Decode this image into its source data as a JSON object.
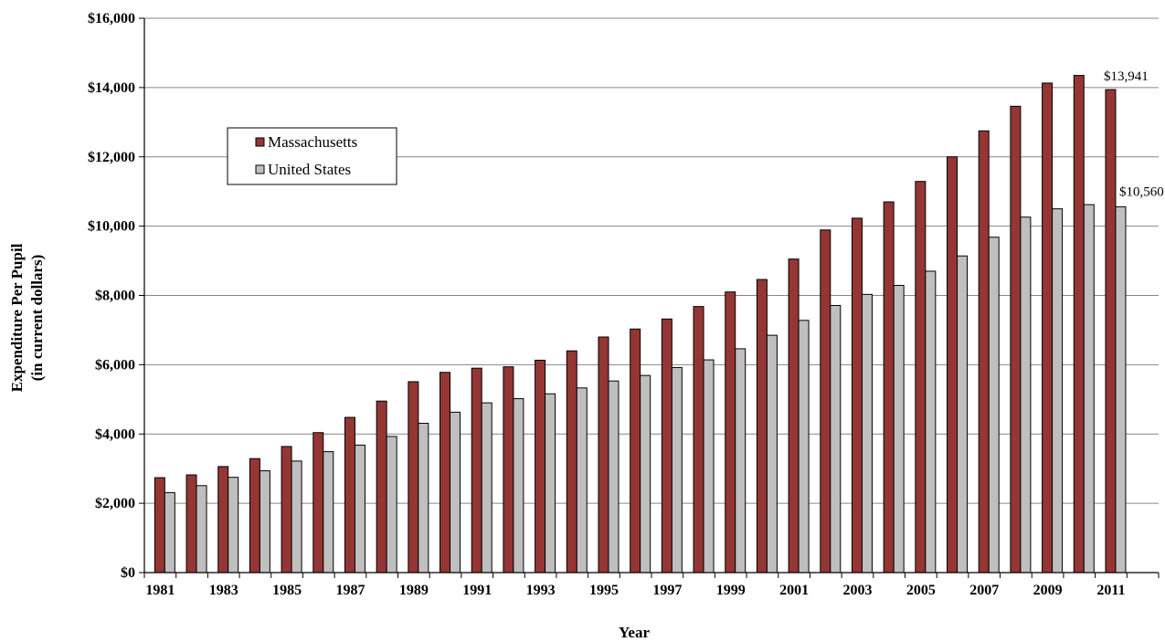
{
  "chart_data": {
    "type": "bar",
    "ylabel_line1": "Expenditure Per Pupil",
    "ylabel_line2": "(in current dollars)",
    "xlabel": "Year",
    "ylim": [
      0,
      16000
    ],
    "y_ticks": [
      "$0",
      "$2,000",
      "$4,000",
      "$6,000",
      "$8,000",
      "$10,000",
      "$12,000",
      "$14,000",
      "$16,000"
    ],
    "y_tick_values": [
      0,
      2000,
      4000,
      6000,
      8000,
      10000,
      12000,
      14000,
      16000
    ],
    "x_tick_labels": [
      "1981",
      "1983",
      "1985",
      "1987",
      "1989",
      "1991",
      "1993",
      "1995",
      "1997",
      "1999",
      "2001",
      "2003",
      "2005",
      "2007",
      "2009",
      "2011"
    ],
    "categories": [
      1981,
      1982,
      1983,
      1984,
      1985,
      1986,
      1987,
      1988,
      1989,
      1990,
      1991,
      1992,
      1993,
      1994,
      1995,
      1996,
      1997,
      1998,
      1999,
      2000,
      2001,
      2002,
      2003,
      2004,
      2005,
      2006,
      2007,
      2008,
      2009,
      2010,
      2011
    ],
    "grid": true,
    "legend_position": "upper-left",
    "series": [
      {
        "name": "Massachusetts",
        "color": "#943634",
        "values": [
          2740,
          2820,
          3060,
          3290,
          3640,
          4040,
          4480,
          4950,
          5510,
          5780,
          5900,
          5940,
          6130,
          6400,
          6800,
          7030,
          7320,
          7680,
          8100,
          8460,
          9050,
          9890,
          10230,
          10700,
          11290,
          12000,
          12750,
          13460,
          14130,
          14350,
          13941
        ]
      },
      {
        "name": "United States",
        "color": "#bfbfbf",
        "values": [
          2310,
          2510,
          2750,
          2940,
          3220,
          3490,
          3680,
          3930,
          4310,
          4630,
          4900,
          5020,
          5160,
          5330,
          5530,
          5690,
          5920,
          6140,
          6460,
          6850,
          7280,
          7710,
          8030,
          8290,
          8700,
          9140,
          9680,
          10260,
          10500,
          10620,
          10560
        ]
      }
    ],
    "annotations": [
      {
        "text": "$13,941",
        "series": 0,
        "index": 30
      },
      {
        "text": "$10,560",
        "series": 1,
        "index": 30
      }
    ]
  }
}
